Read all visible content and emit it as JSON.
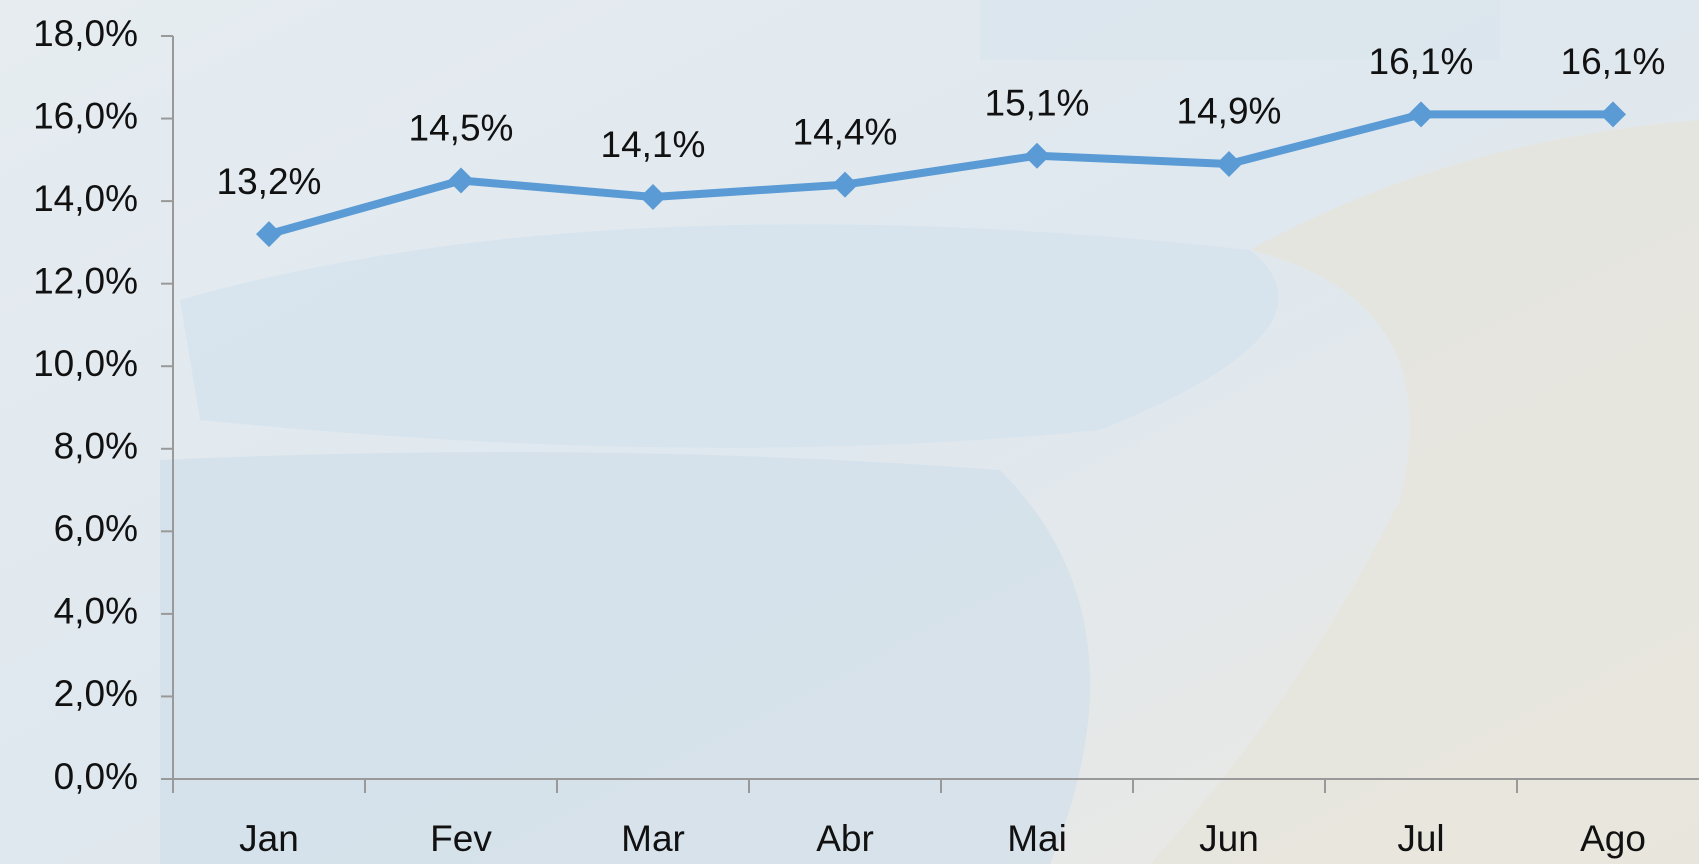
{
  "chart_data": {
    "type": "line",
    "categories": [
      "Jan",
      "Fev",
      "Mar",
      "Abr",
      "Mai",
      "Jun",
      "Jul",
      "Ago"
    ],
    "series": [
      {
        "color": "#5b9bd5",
        "values": [
          13.2,
          14.5,
          14.1,
          14.4,
          15.1,
          14.9,
          16.1,
          16.1
        ],
        "value_labels": [
          "13,2%",
          "14,5%",
          "14,1%",
          "14,4%",
          "15,1%",
          "14,9%",
          "16,1%",
          "16,1%"
        ]
      }
    ],
    "ylim": [
      0,
      18
    ],
    "yticks": [
      {
        "value": 0,
        "label": "0,0%"
      },
      {
        "value": 2,
        "label": "2,0%"
      },
      {
        "value": 4,
        "label": "4,0%"
      },
      {
        "value": 6,
        "label": "6,0%"
      },
      {
        "value": 8,
        "label": "8,0%"
      },
      {
        "value": 10,
        "label": "10,0%"
      },
      {
        "value": 12,
        "label": "12,0%"
      },
      {
        "value": 14,
        "label": "14,0%"
      },
      {
        "value": 16,
        "label": "16,0%"
      },
      {
        "value": 18,
        "label": "18,0%"
      }
    ]
  }
}
